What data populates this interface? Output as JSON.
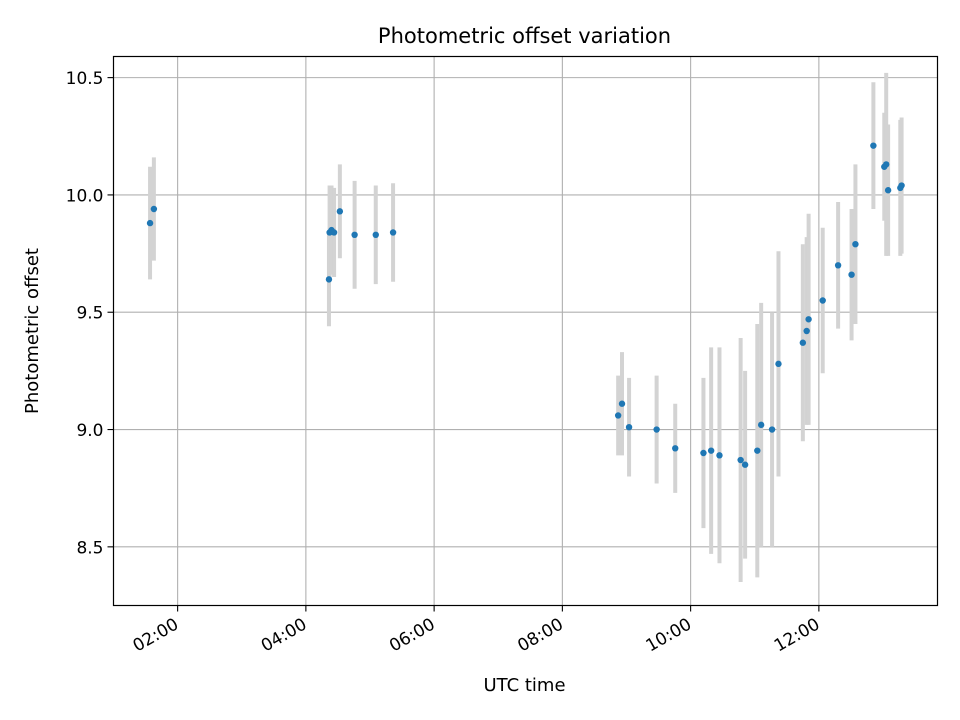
{
  "chart_data": {
    "type": "scatter",
    "title": "Photometric offset variation",
    "xlabel": "UTC time",
    "ylabel": "Photometric offset",
    "grid": true,
    "xlim": [
      1.0,
      13.85
    ],
    "ylim": [
      8.25,
      10.59
    ],
    "x_unit": "hours UTC",
    "xticks": [
      {
        "value": 2,
        "label": "02:00"
      },
      {
        "value": 4,
        "label": "04:00"
      },
      {
        "value": 6,
        "label": "06:00"
      },
      {
        "value": 8,
        "label": "08:00"
      },
      {
        "value": 10,
        "label": "10:00"
      },
      {
        "value": 12,
        "label": "12:00"
      }
    ],
    "yticks": [
      {
        "value": 8.5,
        "label": "8.5"
      },
      {
        "value": 9.0,
        "label": "9.0"
      },
      {
        "value": 9.5,
        "label": "9.5"
      },
      {
        "value": 10.0,
        "label": "10.0"
      },
      {
        "value": 10.5,
        "label": "10.5"
      }
    ],
    "series": [
      {
        "name": "offset",
        "marker_color": "#1f77b4",
        "errorbar_color": "#d3d3d3",
        "points": [
          {
            "x": 1.57,
            "y": 9.88,
            "err": 0.24
          },
          {
            "x": 1.63,
            "y": 9.94,
            "err": 0.22
          },
          {
            "x": 4.36,
            "y": 9.64,
            "err": 0.2
          },
          {
            "x": 4.37,
            "y": 9.84,
            "err": 0.2
          },
          {
            "x": 4.4,
            "y": 9.85,
            "err": 0.19
          },
          {
            "x": 4.44,
            "y": 9.84,
            "err": 0.19
          },
          {
            "x": 4.53,
            "y": 9.93,
            "err": 0.2
          },
          {
            "x": 4.76,
            "y": 9.83,
            "err": 0.23
          },
          {
            "x": 5.09,
            "y": 9.83,
            "err": 0.21
          },
          {
            "x": 5.36,
            "y": 9.84,
            "err": 0.21
          },
          {
            "x": 8.87,
            "y": 9.06,
            "err": 0.17
          },
          {
            "x": 8.93,
            "y": 9.11,
            "err": 0.22
          },
          {
            "x": 9.04,
            "y": 9.01,
            "err": 0.21
          },
          {
            "x": 9.47,
            "y": 9.0,
            "err": 0.23
          },
          {
            "x": 9.76,
            "y": 8.92,
            "err": 0.19
          },
          {
            "x": 10.2,
            "y": 8.9,
            "err": 0.32
          },
          {
            "x": 10.32,
            "y": 8.91,
            "err": 0.44
          },
          {
            "x": 10.45,
            "y": 8.89,
            "err": 0.46
          },
          {
            "x": 10.78,
            "y": 8.87,
            "err": 0.52
          },
          {
            "x": 10.85,
            "y": 8.85,
            "err": 0.4
          },
          {
            "x": 11.04,
            "y": 8.91,
            "err": 0.54
          },
          {
            "x": 11.1,
            "y": 9.02,
            "err": 0.52
          },
          {
            "x": 11.27,
            "y": 9.0,
            "err": 0.5
          },
          {
            "x": 11.37,
            "y": 9.28,
            "err": 0.48
          },
          {
            "x": 11.75,
            "y": 9.37,
            "err": 0.42
          },
          {
            "x": 11.81,
            "y": 9.42,
            "err": 0.4
          },
          {
            "x": 11.84,
            "y": 9.47,
            "err": 0.45
          },
          {
            "x": 12.06,
            "y": 9.55,
            "err": 0.31
          },
          {
            "x": 12.3,
            "y": 9.7,
            "err": 0.27
          },
          {
            "x": 12.51,
            "y": 9.66,
            "err": 0.28
          },
          {
            "x": 12.57,
            "y": 9.79,
            "err": 0.34
          },
          {
            "x": 12.85,
            "y": 10.21,
            "err": 0.27
          },
          {
            "x": 13.02,
            "y": 10.12,
            "err": 0.23
          },
          {
            "x": 13.05,
            "y": 10.13,
            "err": 0.39
          },
          {
            "x": 13.08,
            "y": 10.02,
            "err": 0.28
          },
          {
            "x": 13.27,
            "y": 10.03,
            "err": 0.29
          },
          {
            "x": 13.29,
            "y": 10.04,
            "err": 0.29
          }
        ]
      }
    ]
  }
}
